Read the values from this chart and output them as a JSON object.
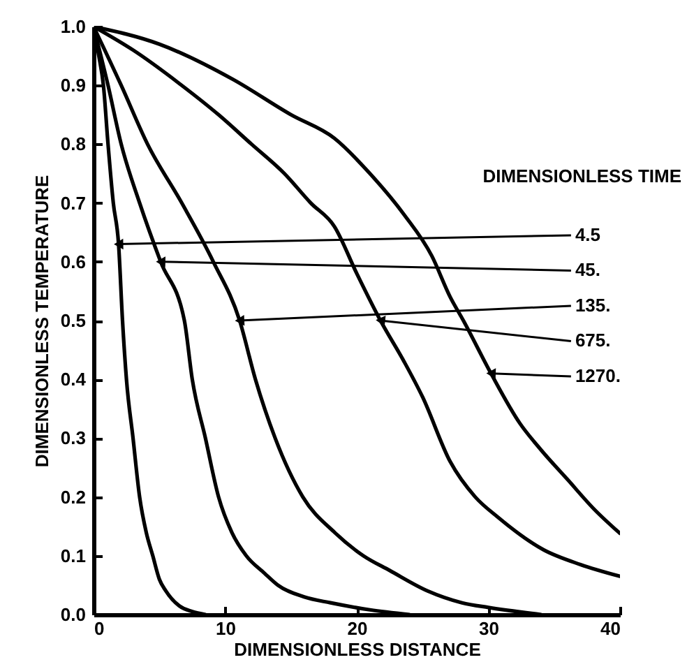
{
  "chart_data": {
    "type": "line",
    "xlabel": "DIMENSIONLESS DISTANCE",
    "ylabel": "DIMENSIONLESS TEMPERATURE",
    "legend_title": "DIMENSIONLESS TIME",
    "xlim": [
      0,
      40
    ],
    "xticks": [
      0,
      10,
      20,
      30,
      40
    ],
    "ylim": [
      0,
      1
    ],
    "yticks": [
      {
        "value": 0,
        "label": "0.0"
      },
      0.1,
      0.2,
      0.3,
      0.4,
      0.5,
      0.6,
      0.7,
      0.8,
      0.9,
      {
        "value": 1,
        "label": "1.0"
      }
    ],
    "series": [
      {
        "name": "4.5",
        "color": "#000000",
        "x": [
          0,
          0.4,
          0.75,
          1.1,
          1.5,
          1.9,
          2.2,
          2.5,
          3.0,
          3.5,
          4.0,
          4.5,
          5.0,
          5.5,
          6.5,
          7.5,
          8.5
        ],
        "values": [
          1,
          0.95,
          0.9,
          0.8,
          0.7,
          0.63,
          0.5,
          0.4,
          0.3,
          0.2,
          0.14,
          0.1,
          0.06,
          0.04,
          0.015,
          0.005,
          0
        ]
      },
      {
        "name": "45.",
        "color": "#000000",
        "x": [
          0,
          1.1,
          2.1,
          3.5,
          5.1,
          6.9,
          7.5,
          8.5,
          9.5,
          10.5,
          11.6,
          13,
          14,
          16,
          18,
          21,
          24
        ],
        "values": [
          1,
          0.9,
          0.8,
          0.7,
          0.6,
          0.5,
          0.4,
          0.3,
          0.2,
          0.14,
          0.1,
          0.07,
          0.05,
          0.03,
          0.02,
          0.008,
          0
        ]
      },
      {
        "name": "135.",
        "color": "#000000",
        "x": [
          0,
          2.1,
          4.1,
          6.7,
          9.1,
          11.1,
          12.3,
          13.8,
          15.9,
          18.3,
          20.5,
          22.5,
          25.4,
          28,
          30,
          34
        ],
        "values": [
          1,
          0.9,
          0.8,
          0.7,
          0.6,
          0.5,
          0.4,
          0.3,
          0.2,
          0.14,
          0.1,
          0.075,
          0.04,
          0.02,
          0.012,
          0
        ]
      },
      {
        "name": "675.",
        "color": "#000000",
        "x": [
          0,
          3,
          6.7,
          9.5,
          12,
          14.5,
          16.5,
          18.3,
          20,
          21.8,
          23.6,
          25,
          27.1,
          29,
          30.7,
          34.2,
          37,
          40
        ],
        "values": [
          1,
          0.96,
          0.9,
          0.85,
          0.8,
          0.75,
          0.7,
          0.66,
          0.58,
          0.5,
          0.43,
          0.37,
          0.26,
          0.2,
          0.166,
          0.11,
          0.085,
          0.065
        ]
      },
      {
        "name": "1270.",
        "color": "#000000",
        "x": [
          0,
          5,
          10.6,
          15,
          18.3,
          21,
          23.6,
          25.7,
          27.1,
          28.1,
          30.2,
          32.4,
          34,
          36,
          38,
          40
        ],
        "values": [
          1,
          0.97,
          0.91,
          0.85,
          0.81,
          0.75,
          0.68,
          0.61,
          0.54,
          0.5,
          0.41,
          0.325,
          0.28,
          0.23,
          0.18,
          0.138
        ]
      }
    ]
  }
}
